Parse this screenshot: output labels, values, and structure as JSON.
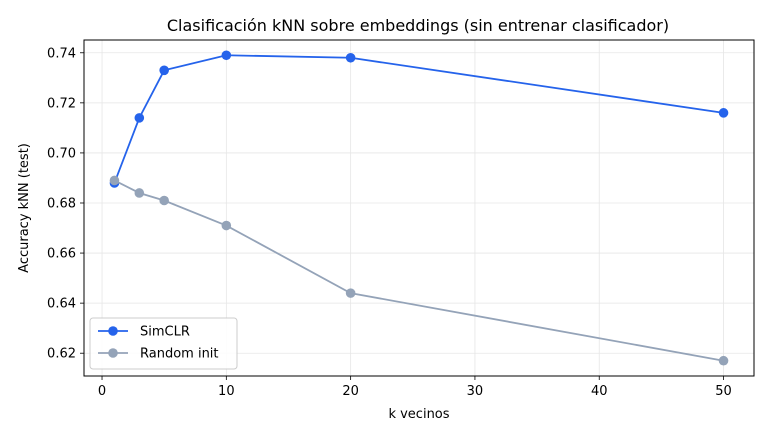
{
  "chart_data": {
    "type": "line",
    "title": "Clasificación kNN sobre embeddings (sin entrenar clasificador)",
    "xlabel": "k vecinos",
    "ylabel": "Accuracy kNN (test)",
    "x": [
      1,
      3,
      5,
      10,
      20,
      50
    ],
    "xlim": [
      -1.45,
      52.45
    ],
    "ylim": [
      0.6109,
      0.7451
    ],
    "xticks": [
      0,
      10,
      20,
      30,
      40,
      50
    ],
    "yticks": [
      0.62,
      0.64,
      0.66,
      0.68,
      0.7,
      0.72,
      0.74
    ],
    "ytick_labels": [
      "0.62",
      "0.64",
      "0.66",
      "0.68",
      "0.70",
      "0.72",
      "0.74"
    ],
    "grid": true,
    "legend_position": "lower-left",
    "series": [
      {
        "name": "SimCLR",
        "color": "#2563eb",
        "values": [
          0.688,
          0.714,
          0.733,
          0.739,
          0.738,
          0.716
        ]
      },
      {
        "name": "Random init",
        "color": "#94a3b8",
        "values": [
          0.689,
          0.684,
          0.681,
          0.671,
          0.644,
          0.617
        ]
      }
    ]
  }
}
